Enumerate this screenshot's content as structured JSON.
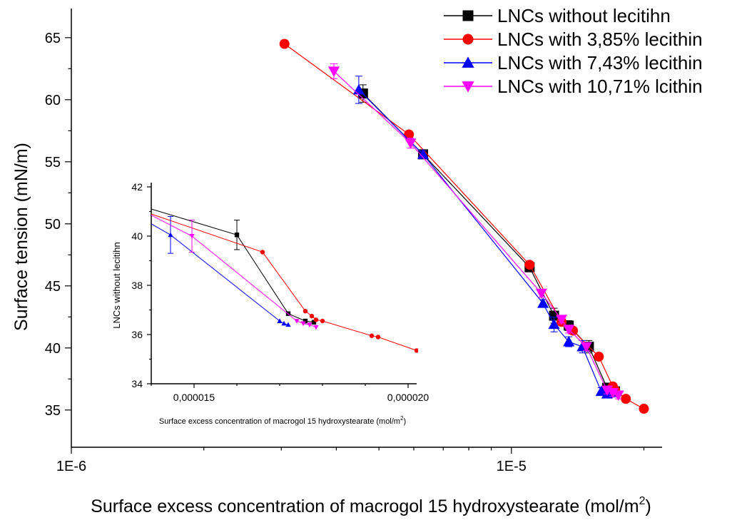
{
  "chart_data": [
    {
      "type": "scatter",
      "title": "",
      "xlabel": "Surface excess concentration of macrogol 15 hydroxystearate (mol/m",
      "xlabel_sup": "2",
      "xlabel_close": ")",
      "ylabel": "Surface tension (mN/m)",
      "xscale": "log",
      "xlim": [
        1e-06,
        2.2e-05
      ],
      "ylim": [
        32,
        67
      ],
      "xticks": [
        {
          "value": 1e-06,
          "label": "1E-6"
        },
        {
          "value": 1e-05,
          "label": "1E-5"
        }
      ],
      "yticks": [
        35,
        40,
        45,
        50,
        55,
        60,
        65
      ],
      "ytick_labels": [
        "35",
        "40",
        "45",
        "50",
        "55",
        "60",
        "65"
      ],
      "legend_position": "top-right",
      "series": [
        {
          "name": "LNCs without lecitihn",
          "color": "#000000",
          "marker": "square",
          "x": [
            4.6e-06,
            6.3e-06,
            1.1e-05,
            1.25e-05,
            1.35e-05,
            1.5e-05,
            1.65e-05,
            1.72e-05
          ],
          "y": [
            60.5,
            55.6,
            46.5,
            42.6,
            41.8,
            40.1,
            36.8,
            36.5
          ],
          "yerr": [
            0.7,
            0.3,
            0.3,
            0.6,
            0.4,
            0.5,
            0.3,
            0.3
          ]
        },
        {
          "name": "LNCs with 3,85% lecithin",
          "color": "#ff0000",
          "marker": "circle",
          "x": [
            3.05e-06,
            5.85e-06,
            1.1e-05,
            1.3e-05,
            1.38e-05,
            1.58e-05,
            1.7e-05,
            1.72e-05,
            1.82e-05,
            2e-05
          ],
          "y": [
            64.5,
            57.2,
            46.7,
            42.1,
            41.4,
            39.3,
            36.9,
            36.6,
            35.9,
            35.1
          ],
          "yerr": [
            0,
            0,
            0,
            0,
            0,
            0,
            0,
            0,
            0,
            0
          ]
        },
        {
          "name": "LNCs with 7,43% lecithin",
          "color": "#0000ff",
          "marker": "triangle-up",
          "x": [
            4.5e-06,
            6.3e-06,
            1.18e-05,
            1.25e-05,
            1.35e-05,
            1.45e-05,
            1.6e-05,
            1.65e-05,
            1.68e-05
          ],
          "y": [
            60.8,
            55.6,
            43.6,
            41.9,
            40.5,
            40.1,
            36.5,
            36.3,
            36.4
          ],
          "yerr": [
            1.1,
            0.3,
            0.3,
            0.6,
            0.4,
            0.5,
            0.3,
            0.3,
            0.3
          ]
        },
        {
          "name": "LNCs with 10,71% lcithin",
          "color": "#ff00ff",
          "marker": "triangle-down",
          "x": [
            3.95e-06,
            5.9e-06,
            1.17e-05,
            1.3e-05,
            1.35e-05,
            1.48e-05,
            1.65e-05,
            1.7e-05,
            1.75e-05
          ],
          "y": [
            62.3,
            56.5,
            44.4,
            42.3,
            41.5,
            40.1,
            36.6,
            36.4,
            36.2
          ],
          "yerr": [
            0.6,
            0.4,
            0.3,
            0.3,
            0.3,
            0.3,
            0.3,
            0.3,
            0.3
          ]
        }
      ]
    },
    {
      "type": "scatter",
      "title": "",
      "xlabel": "Surface excess concentration of macrogol 15 hydroxystearate (mol/m",
      "xlabel_sup": "2",
      "xlabel_close": ")",
      "ylabel": "LNCs without lecitihn",
      "xlim": [
        1.4e-05,
        2.02e-05
      ],
      "ylim": [
        34,
        42
      ],
      "xticks": [
        {
          "value": 1.5e-05,
          "label": "0,000015"
        },
        {
          "value": 2e-05,
          "label": "0,000020"
        }
      ],
      "yticks": [
        34,
        36,
        38,
        40,
        42
      ],
      "ytick_labels": [
        "34",
        "36",
        "38",
        "40",
        "42"
      ],
      "series": [
        {
          "color": "#000000",
          "marker": "square",
          "x": [
            1.4e-05,
            1.6e-05,
            1.72e-05,
            1.76e-05,
            1.78e-05
          ],
          "y": [
            41.1,
            40.05,
            36.85,
            36.55,
            36.5
          ],
          "yerr": [
            0,
            0.6,
            0,
            0,
            0
          ]
        },
        {
          "color": "#ff0000",
          "marker": "circle",
          "x": [
            1.4e-05,
            1.66e-05,
            1.76e-05,
            1.775e-05,
            1.785e-05,
            1.8e-05,
            1.915e-05,
            1.93e-05,
            2.02e-05
          ],
          "y": [
            40.9,
            39.35,
            36.95,
            36.75,
            36.6,
            36.55,
            35.95,
            35.9,
            35.35
          ],
          "yerr": [
            0,
            0,
            0,
            0,
            0,
            0,
            0,
            0,
            0
          ]
        },
        {
          "color": "#0000ff",
          "marker": "triangle-up",
          "x": [
            1.4e-05,
            1.445e-05,
            1.7e-05,
            1.71e-05,
            1.72e-05
          ],
          "y": [
            40.5,
            40.05,
            36.55,
            36.45,
            36.4
          ],
          "yerr": [
            0,
            0.75,
            0,
            0,
            0
          ]
        },
        {
          "color": "#ff00ff",
          "marker": "triangle-down",
          "x": [
            1.4e-05,
            1.495e-05,
            1.74e-05,
            1.755e-05,
            1.77e-05,
            1.785e-05
          ],
          "y": [
            40.85,
            40.0,
            36.55,
            36.45,
            36.4,
            36.3
          ],
          "yerr": [
            0,
            0.65,
            0,
            0,
            0,
            0
          ]
        }
      ]
    }
  ]
}
